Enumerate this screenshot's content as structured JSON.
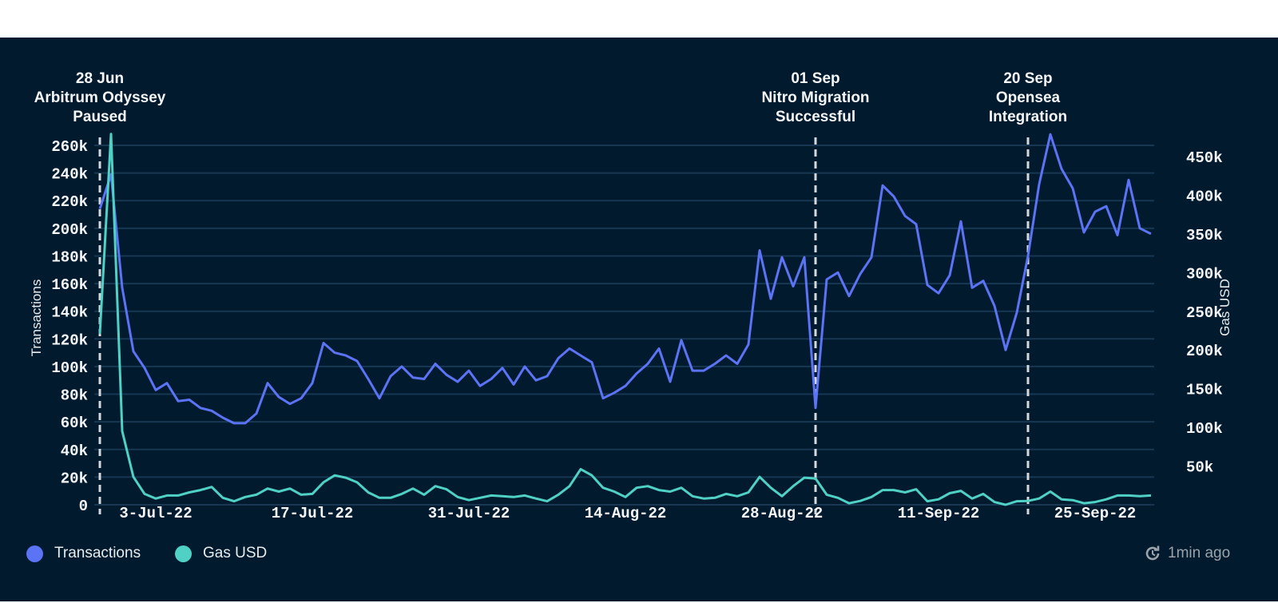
{
  "chart_data": {
    "type": "line",
    "title": "",
    "x_start": "2022-06-28",
    "x_step_days": 1,
    "xlabel": "",
    "x_tick_labels": [
      {
        "date": "2022-07-03",
        "label": "3-Jul-22"
      },
      {
        "date": "2022-07-17",
        "label": "17-Jul-22"
      },
      {
        "date": "2022-07-31",
        "label": "31-Jul-22"
      },
      {
        "date": "2022-08-14",
        "label": "14-Aug-22"
      },
      {
        "date": "2022-08-28",
        "label": "28-Aug-22"
      },
      {
        "date": "2022-09-11",
        "label": "11-Sep-22"
      },
      {
        "date": "2022-09-25",
        "label": "25-Sep-22"
      }
    ],
    "y_left": {
      "label": "Transactions",
      "range": [
        0,
        260000
      ],
      "ticks": [
        0,
        20000,
        40000,
        60000,
        80000,
        100000,
        120000,
        140000,
        160000,
        180000,
        200000,
        220000,
        240000,
        260000
      ],
      "tick_labels": [
        "0",
        "20k",
        "40k",
        "60k",
        "80k",
        "100k",
        "120k",
        "140k",
        "160k",
        "180k",
        "200k",
        "220k",
        "240k",
        "260k"
      ]
    },
    "y_right": {
      "label": "Gas USD",
      "range": [
        0,
        450000
      ],
      "ticks": [
        50000,
        100000,
        150000,
        200000,
        250000,
        300000,
        350000,
        400000,
        450000
      ],
      "tick_labels": [
        "50k",
        "100k",
        "150k",
        "200k",
        "250k",
        "300k",
        "350k",
        "400k",
        "450k"
      ]
    },
    "grid": true,
    "legend_position": "bottom-left",
    "series": [
      {
        "name": "Transactions",
        "axis": "left",
        "color": "#5b73f5",
        "values": [
          214000,
          239000,
          157000,
          111000,
          99000,
          83000,
          88000,
          75000,
          76000,
          70000,
          68000,
          63000,
          59000,
          59000,
          66000,
          88000,
          78000,
          73000,
          77000,
          88000,
          117000,
          110000,
          108000,
          104000,
          91000,
          77000,
          93000,
          100000,
          92000,
          91000,
          102000,
          94000,
          89000,
          97000,
          86000,
          91000,
          99000,
          87000,
          100000,
          90000,
          93000,
          106000,
          113000,
          108000,
          103000,
          77000,
          81000,
          86000,
          95000,
          102000,
          113000,
          89000,
          119000,
          97000,
          97000,
          102000,
          108000,
          102000,
          116000,
          184000,
          149000,
          179000,
          158000,
          179000,
          70000,
          163000,
          168000,
          151000,
          167000,
          179000,
          231000,
          223000,
          209000,
          203000,
          159000,
          153000,
          166000,
          205000,
          157000,
          162000,
          144000,
          112000,
          139000,
          180000,
          232000,
          268000,
          243000,
          229000,
          197000,
          212000,
          216000,
          195000,
          235000,
          200000,
          196000
        ]
      },
      {
        "name": "Gas USD",
        "axis": "right",
        "color": "#4fd1c5",
        "values": [
          221000,
          479000,
          95000,
          36000,
          14000,
          8000,
          12000,
          12000,
          16000,
          19000,
          23000,
          9000,
          4500,
          10000,
          13000,
          21000,
          17000,
          21000,
          13000,
          14000,
          29000,
          38000,
          35000,
          29000,
          16000,
          9000,
          9000,
          14000,
          21000,
          13000,
          24000,
          20000,
          10000,
          6000,
          9000,
          12000,
          11000,
          10000,
          12000,
          8000,
          4500,
          13000,
          24000,
          46000,
          38000,
          22000,
          17000,
          10000,
          22000,
          24000,
          19000,
          17000,
          22000,
          11000,
          8000,
          9000,
          14000,
          11000,
          16000,
          36000,
          22000,
          11000,
          24000,
          35000,
          34000,
          13000,
          9000,
          2000,
          5000,
          10000,
          19000,
          19000,
          16000,
          20000,
          4500,
          7000,
          15000,
          18000,
          8000,
          14000,
          3500,
          0,
          4500,
          5000,
          8000,
          17000,
          7000,
          6000,
          2000,
          3500,
          7000,
          12000,
          12000,
          11000,
          12000
        ]
      }
    ],
    "annotations": [
      {
        "date": "2022-06-29",
        "lines": [
          "28 Jun",
          "Arbitrum Odyssey",
          "Paused"
        ]
      },
      {
        "date": "2022-09-01",
        "lines": [
          "01 Sep",
          "Nitro Migration",
          "Successful"
        ]
      },
      {
        "date": "2022-09-20",
        "lines": [
          "20 Sep",
          "Opensea",
          "Integration"
        ]
      }
    ]
  },
  "legend": [
    {
      "label": "Transactions",
      "color": "#5b73f5"
    },
    {
      "label": "Gas USD",
      "color": "#4fd1c5"
    }
  ],
  "footer": {
    "updated": "1min ago"
  }
}
